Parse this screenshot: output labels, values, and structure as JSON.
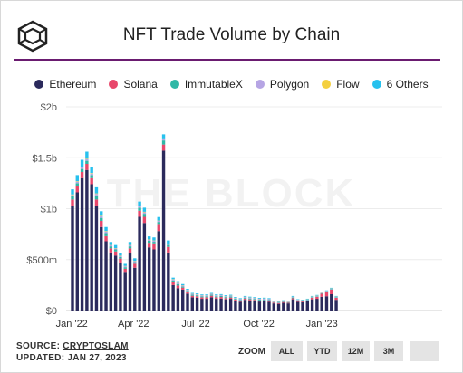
{
  "title": "NFT Trade Volume by Chain",
  "watermark": "THE BLOCK",
  "legend": [
    {
      "name": "Ethereum",
      "color": "#2b2a5c"
    },
    {
      "name": "Solana",
      "color": "#e8476b"
    },
    {
      "name": "ImmutableX",
      "color": "#2fb8a6"
    },
    {
      "name": "Polygon",
      "color": "#b6a5e4"
    },
    {
      "name": "Flow",
      "color": "#f4d03f"
    },
    {
      "name": "6 Others",
      "color": "#27c1ee"
    }
  ],
  "footer": {
    "source_prefix": "SOURCE: ",
    "source_link": "CRYPTOSLAM",
    "updated": "UPDATED: JAN 27, 2023"
  },
  "zoom": {
    "label": "ZOOM",
    "buttons": [
      "ALL",
      "YTD",
      "12M",
      "3M",
      ""
    ]
  },
  "chart_data": {
    "type": "bar",
    "stacked": true,
    "title": "NFT Trade Volume by Chain",
    "x_tick_labels": [
      "Jan '22",
      "Apr '22",
      "Jul '22",
      "Oct '22",
      "Jan '23"
    ],
    "y_tick_labels": [
      "$0",
      "$500m",
      "$1b",
      "$1.5b",
      "$2b"
    ],
    "y_ticks": [
      0,
      500,
      1000,
      1500,
      2000
    ],
    "ylim": [
      0,
      2000
    ],
    "units": "millions USD",
    "grid": true,
    "legend_position": "top",
    "weeks": [
      "2022-01-02",
      "2022-01-09",
      "2022-01-16",
      "2022-01-23",
      "2022-01-30",
      "2022-02-06",
      "2022-02-13",
      "2022-02-20",
      "2022-02-27",
      "2022-03-06",
      "2022-03-13",
      "2022-03-20",
      "2022-03-27",
      "2022-04-03",
      "2022-04-10",
      "2022-04-17",
      "2022-04-24",
      "2022-05-01",
      "2022-05-08",
      "2022-05-15",
      "2022-05-22",
      "2022-05-29",
      "2022-06-05",
      "2022-06-12",
      "2022-06-19",
      "2022-06-26",
      "2022-07-03",
      "2022-07-10",
      "2022-07-17",
      "2022-07-24",
      "2022-07-31",
      "2022-08-07",
      "2022-08-14",
      "2022-08-21",
      "2022-08-28",
      "2022-09-04",
      "2022-09-11",
      "2022-09-18",
      "2022-09-25",
      "2022-10-02",
      "2022-10-09",
      "2022-10-16",
      "2022-10-23",
      "2022-10-30",
      "2022-11-06",
      "2022-11-13",
      "2022-11-20",
      "2022-11-27",
      "2022-12-04",
      "2022-12-11",
      "2022-12-18",
      "2022-12-25",
      "2023-01-01",
      "2023-01-08",
      "2023-01-15",
      "2023-01-22"
    ],
    "series": [
      {
        "name": "Ethereum",
        "values": [
          1030,
          1160,
          1300,
          1380,
          1240,
          1030,
          820,
          680,
          570,
          540,
          470,
          380,
          560,
          420,
          920,
          860,
          620,
          600,
          780,
          1570,
          570,
          250,
          220,
          205,
          165,
          130,
          125,
          115,
          115,
          130,
          115,
          118,
          110,
          115,
          95,
          85,
          105,
          100,
          95,
          88,
          90,
          85,
          70,
          65,
          75,
          70,
          110,
          85,
          80,
          90,
          110,
          115,
          135,
          140,
          160,
          105
        ]
      },
      {
        "name": "Solana",
        "values": [
          60,
          60,
          60,
          60,
          60,
          60,
          60,
          50,
          40,
          40,
          40,
          30,
          50,
          40,
          60,
          60,
          45,
          60,
          70,
          60,
          55,
          30,
          25,
          20,
          18,
          15,
          15,
          15,
          15,
          15,
          15,
          15,
          12,
          12,
          12,
          10,
          12,
          10,
          10,
          10,
          10,
          10,
          8,
          8,
          8,
          6,
          10,
          8,
          8,
          8,
          15,
          20,
          30,
          40,
          45,
          20
        ]
      },
      {
        "name": "ImmutableX",
        "values": [
          30,
          30,
          30,
          30,
          30,
          40,
          30,
          30,
          20,
          20,
          15,
          15,
          20,
          15,
          30,
          30,
          20,
          15,
          20,
          40,
          20,
          15,
          15,
          10,
          10,
          10,
          10,
          10,
          10,
          10,
          10,
          10,
          10,
          10,
          8,
          8,
          8,
          8,
          8,
          8,
          8,
          8,
          5,
          5,
          5,
          5,
          8,
          5,
          5,
          5,
          5,
          5,
          5,
          5,
          5,
          5
        ]
      },
      {
        "name": "Polygon",
        "values": [
          15,
          15,
          15,
          15,
          15,
          15,
          15,
          15,
          10,
          10,
          10,
          10,
          10,
          10,
          15,
          15,
          10,
          10,
          10,
          15,
          10,
          10,
          10,
          10,
          8,
          8,
          8,
          8,
          8,
          8,
          8,
          8,
          8,
          8,
          8,
          8,
          8,
          8,
          8,
          8,
          8,
          8,
          5,
          5,
          5,
          5,
          5,
          5,
          5,
          5,
          5,
          5,
          5,
          5,
          5,
          5
        ]
      },
      {
        "name": "Flow",
        "values": [
          5,
          5,
          5,
          5,
          5,
          5,
          5,
          5,
          3,
          3,
          3,
          3,
          3,
          3,
          5,
          5,
          3,
          3,
          3,
          5,
          3,
          3,
          3,
          3,
          2,
          2,
          2,
          2,
          2,
          2,
          2,
          2,
          2,
          2,
          2,
          2,
          2,
          2,
          2,
          2,
          2,
          2,
          2,
          2,
          2,
          2,
          2,
          2,
          2,
          2,
          2,
          2,
          2,
          2,
          2,
          2
        ]
      },
      {
        "name": "6 Others",
        "values": [
          50,
          60,
          70,
          70,
          60,
          60,
          45,
          40,
          30,
          30,
          25,
          20,
          30,
          25,
          40,
          40,
          30,
          30,
          35,
          40,
          30,
          15,
          15,
          12,
          10,
          8,
          8,
          8,
          8,
          8,
          8,
          8,
          8,
          8,
          8,
          8,
          8,
          8,
          8,
          8,
          8,
          8,
          6,
          6,
          6,
          6,
          8,
          6,
          6,
          6,
          6,
          6,
          6,
          6,
          6,
          6
        ]
      }
    ]
  }
}
